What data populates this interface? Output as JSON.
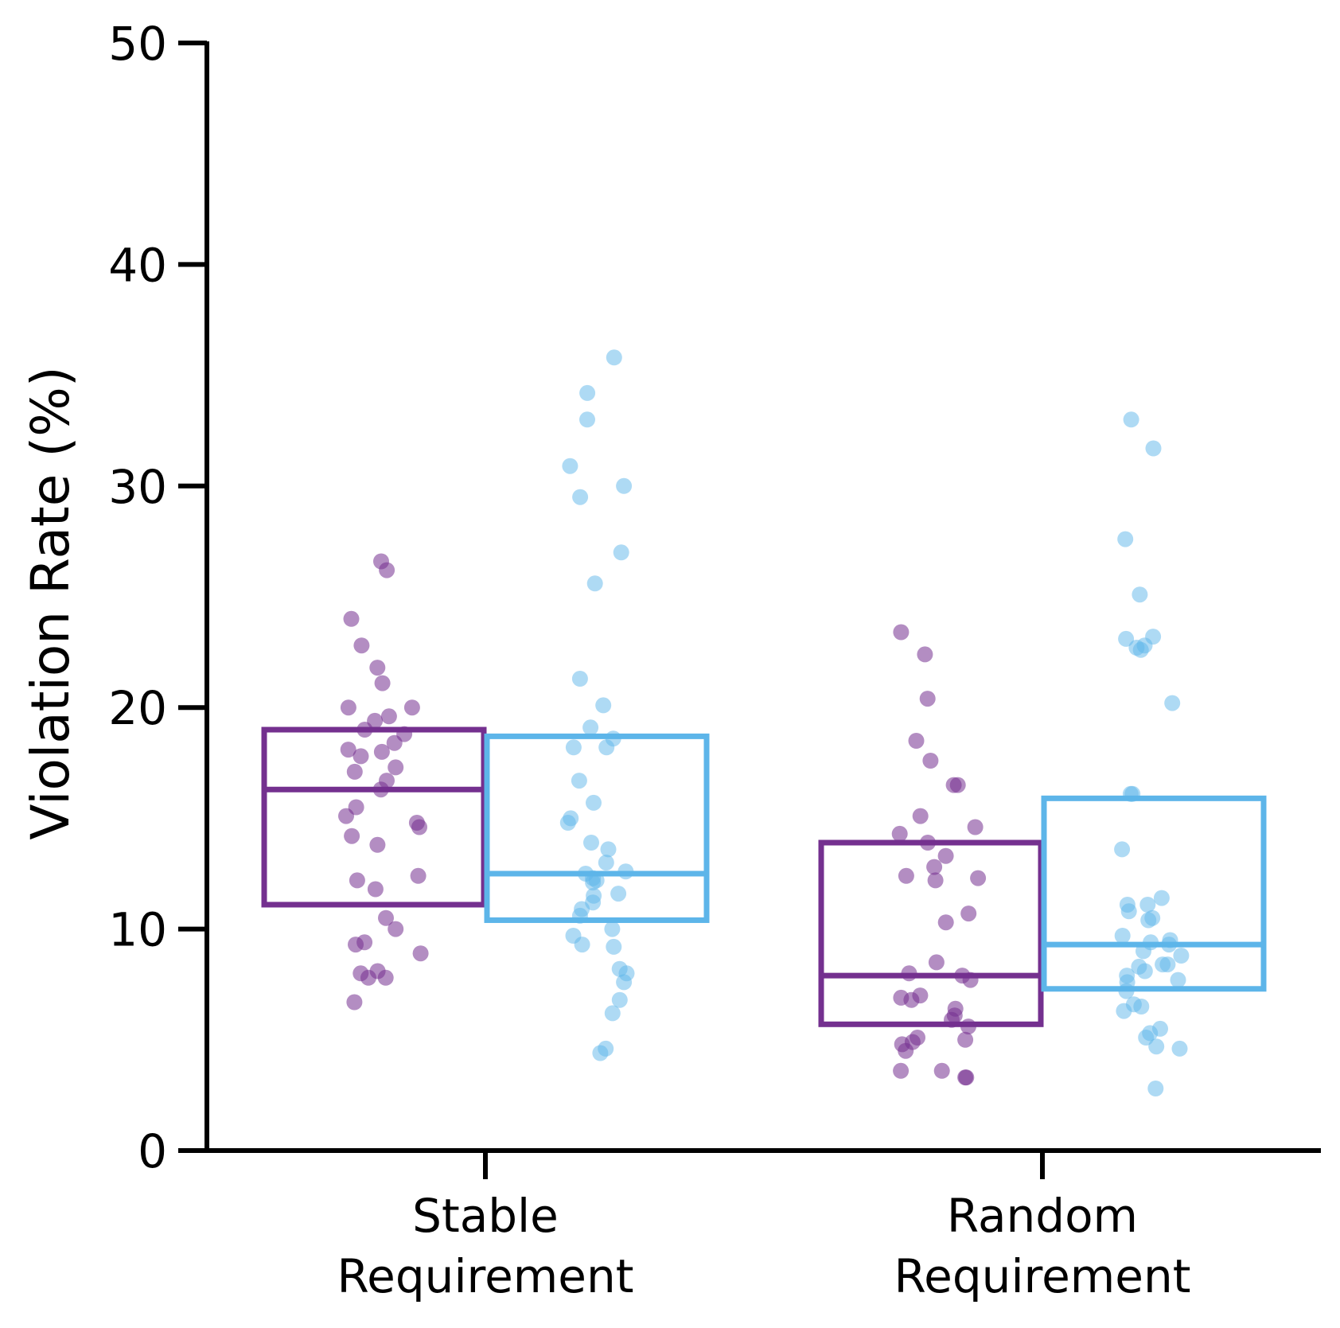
{
  "chart_data": {
    "type": "box-strip",
    "ylabel": "Violation Rate (%)",
    "ylim": [
      0,
      50
    ],
    "yticks": [
      "0",
      "10",
      "20",
      "30",
      "40",
      "50"
    ],
    "categories": [
      [
        "Stable",
        "Requirement"
      ],
      [
        "Random",
        "Requirement"
      ]
    ],
    "colors": {
      "purple": "#74308f",
      "blue": "#5db5e9"
    },
    "groups": [
      {
        "category": 0,
        "color": "purple",
        "box": {
          "q1": 11.1,
          "median": 16.3,
          "q3": 19.0
        },
        "points": [
          26.6,
          26.2,
          24.0,
          22.8,
          21.8,
          21.1,
          20.0,
          20.0,
          19.6,
          19.4,
          19.0,
          18.8,
          18.4,
          18.1,
          18.0,
          17.8,
          17.3,
          17.1,
          16.7,
          16.3,
          15.5,
          15.1,
          14.8,
          14.6,
          14.2,
          13.8,
          12.4,
          12.2,
          11.8,
          10.5,
          10.0,
          9.4,
          9.3,
          8.9,
          8.1,
          8.0,
          7.8,
          7.8,
          6.7
        ]
      },
      {
        "category": 0,
        "color": "blue",
        "box": {
          "q1": 10.4,
          "median": 12.5,
          "q3": 18.7
        },
        "points": [
          35.8,
          34.2,
          33.0,
          30.9,
          30.0,
          29.5,
          27.0,
          25.6,
          21.3,
          20.1,
          19.1,
          18.6,
          18.2,
          18.2,
          16.7,
          15.7,
          15.0,
          14.8,
          13.9,
          13.6,
          13.0,
          12.6,
          12.5,
          12.3,
          12.2,
          12.1,
          11.6,
          11.5,
          11.2,
          10.9,
          10.6,
          10.0,
          9.7,
          9.3,
          9.2,
          8.2,
          8.0,
          7.6,
          6.8,
          6.2,
          4.6,
          4.4
        ]
      },
      {
        "category": 1,
        "color": "purple",
        "box": {
          "q1": 5.7,
          "median": 7.9,
          "q3": 13.9
        },
        "points": [
          23.4,
          22.4,
          20.4,
          18.5,
          17.6,
          16.5,
          16.5,
          15.1,
          14.6,
          14.3,
          13.9,
          13.3,
          12.8,
          12.4,
          12.3,
          12.2,
          10.7,
          10.3,
          8.5,
          8.0,
          7.9,
          7.7,
          7.0,
          6.9,
          6.8,
          6.4,
          6.1,
          5.9,
          5.6,
          5.1,
          5.0,
          4.9,
          4.8,
          4.5,
          3.6,
          3.6,
          3.3,
          3.3
        ]
      },
      {
        "category": 1,
        "color": "blue",
        "box": {
          "q1": 7.3,
          "median": 9.3,
          "q3": 15.9
        },
        "points": [
          33.0,
          31.7,
          27.6,
          25.1,
          23.2,
          23.1,
          22.8,
          22.7,
          22.6,
          20.2,
          16.1,
          16.1,
          13.6,
          11.4,
          11.1,
          11.1,
          10.8,
          10.5,
          10.4,
          9.7,
          9.5,
          9.4,
          9.3,
          9.0,
          8.8,
          8.4,
          8.4,
          8.3,
          8.1,
          7.9,
          7.7,
          7.6,
          7.2,
          6.6,
          6.5,
          6.3,
          5.5,
          5.3,
          5.1,
          4.7,
          4.6,
          2.8
        ]
      }
    ]
  }
}
